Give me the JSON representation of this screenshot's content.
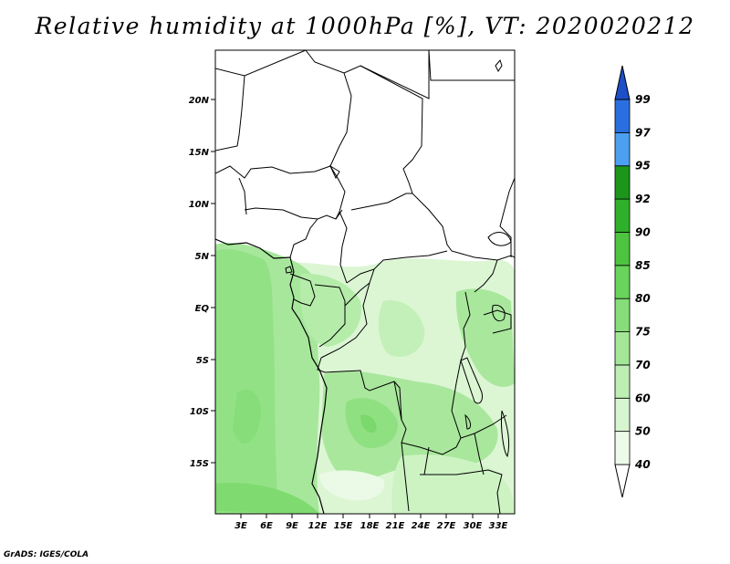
{
  "title": "Relative humidity at 1000hPa [%], VT: 2020020212",
  "credit": "GrADS: IGES/COLA",
  "map": {
    "lat_ticks": [
      "20N",
      "15N",
      "10N",
      "5N",
      "EQ",
      "5S",
      "10S",
      "15S"
    ],
    "lon_ticks": [
      "3E",
      "6E",
      "9E",
      "12E",
      "15E",
      "18E",
      "21E",
      "24E",
      "27E",
      "30E",
      "33E"
    ]
  },
  "colorbar": {
    "levels": [
      "40",
      "50",
      "60",
      "70",
      "75",
      "80",
      "85",
      "90",
      "92",
      "95",
      "97",
      "99"
    ],
    "colors": [
      "#ffffff",
      "#edfbea",
      "#d7f5d0",
      "#bdeeb3",
      "#a3e697",
      "#86dd79",
      "#69d35b",
      "#4cc43f",
      "#2fb02a",
      "#1c951a",
      "#4d9ff0",
      "#2a6fe0",
      "#1c4fc8"
    ]
  }
}
